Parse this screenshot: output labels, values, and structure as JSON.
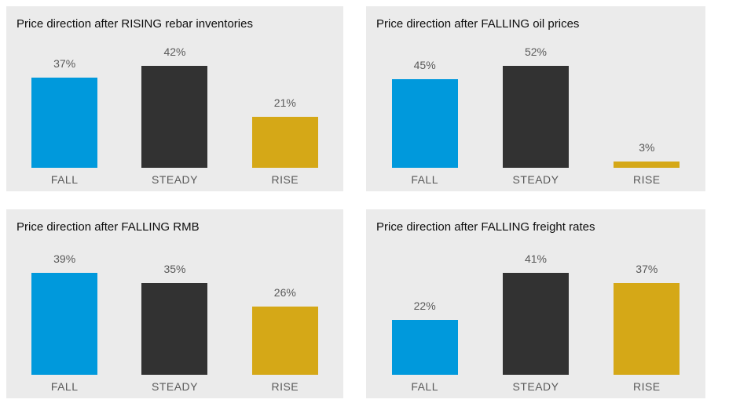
{
  "colors": {
    "fall_bar": "#0099dc",
    "steady_bar": "#323232",
    "rise_bar": "#d5a817",
    "panel_background": "#ebebeb",
    "page_background": "#ffffff",
    "title_text": "#0d0d0d",
    "label_text": "#595959"
  },
  "chart_data": [
    {
      "type": "bar",
      "title": "Price direction after RISING rebar inventories",
      "categories": [
        "FALL",
        "STEADY",
        "RISE"
      ],
      "values": [
        37,
        42,
        21
      ],
      "value_labels": [
        "37%",
        "42%",
        "21%"
      ],
      "bar_colors": [
        "#0099dc",
        "#323232",
        "#d5a817"
      ],
      "xlabel": "",
      "ylabel": "",
      "ylim": [
        0,
        42
      ],
      "axes_visible": false,
      "grid": false,
      "legend": false,
      "data_labels_position": "above bars"
    },
    {
      "type": "bar",
      "title": "Price direction after FALLING oil prices",
      "categories": [
        "FALL",
        "STEADY",
        "RISE"
      ],
      "values": [
        45,
        52,
        3
      ],
      "value_labels": [
        "45%",
        "52%",
        "3%"
      ],
      "bar_colors": [
        "#0099dc",
        "#323232",
        "#d5a817"
      ],
      "xlabel": "",
      "ylabel": "",
      "ylim": [
        0,
        52
      ],
      "axes_visible": false,
      "grid": false,
      "legend": false,
      "data_labels_position": "above bars"
    },
    {
      "type": "bar",
      "title": "Price direction after FALLING RMB",
      "categories": [
        "FALL",
        "STEADY",
        "RISE"
      ],
      "values": [
        39,
        35,
        26
      ],
      "value_labels": [
        "39%",
        "35%",
        "26%"
      ],
      "bar_colors": [
        "#0099dc",
        "#323232",
        "#d5a817"
      ],
      "xlabel": "",
      "ylabel": "",
      "ylim": [
        0,
        39
      ],
      "axes_visible": false,
      "grid": false,
      "legend": false,
      "data_labels_position": "above bars"
    },
    {
      "type": "bar",
      "title": "Price direction after FALLING freight rates",
      "categories": [
        "FALL",
        "STEADY",
        "RISE"
      ],
      "values": [
        22,
        41,
        37
      ],
      "value_labels": [
        "22%",
        "41%",
        "37%"
      ],
      "bar_colors": [
        "#0099dc",
        "#323232",
        "#d5a817"
      ],
      "xlabel": "",
      "ylabel": "",
      "ylim": [
        0,
        41
      ],
      "axes_visible": false,
      "grid": false,
      "legend": false,
      "data_labels_position": "above bars"
    }
  ]
}
